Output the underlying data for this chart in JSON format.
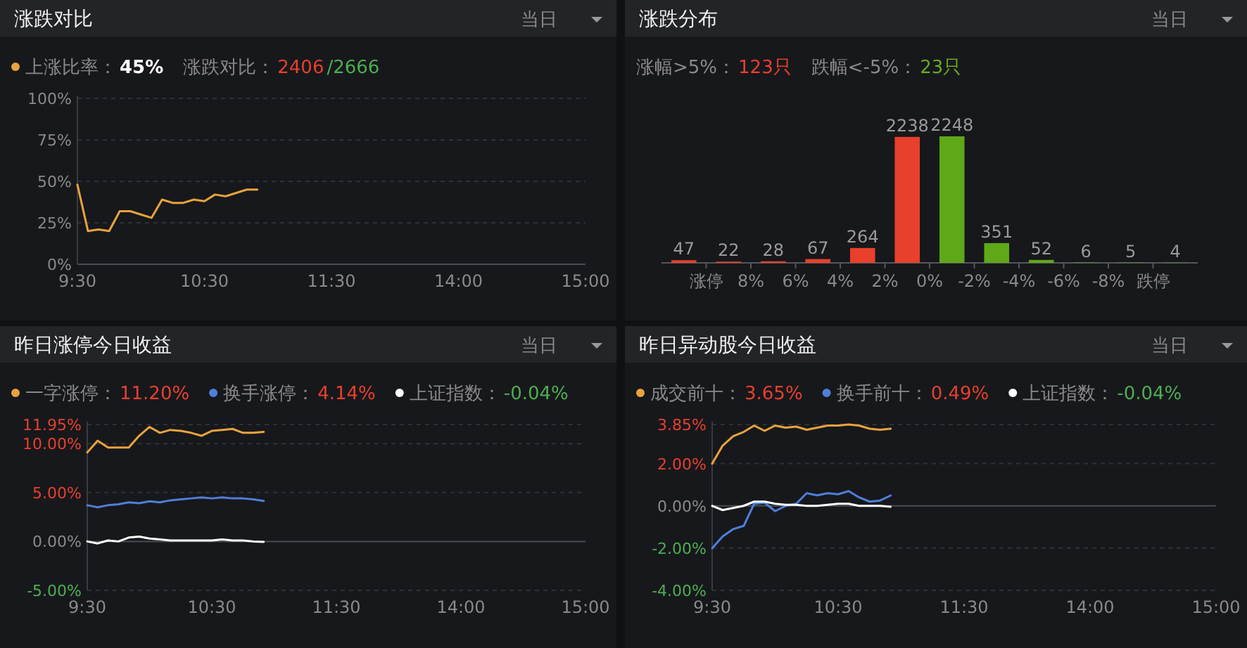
{
  "chart_data": [
    {
      "type": "line",
      "title": "涨跌对比",
      "annotations": [
        "当日",
        "45%",
        "涨跌对比：",
        "2406",
        "/2666"
      ],
      "legend": "top left",
      "grid": "y",
      "categories": [
        "9:30",
        null,
        null,
        null,
        null,
        null,
        null,
        null,
        null,
        null,
        null,
        null,
        "10:30",
        null,
        null,
        null,
        null,
        null,
        null,
        null,
        null,
        null,
        null,
        null,
        "11:30",
        null,
        null,
        null,
        null,
        null,
        null,
        null,
        null,
        null,
        null,
        null,
        "14:00",
        null,
        null,
        null,
        null,
        null,
        null,
        null,
        null,
        null,
        null,
        null,
        "15:00"
      ],
      "ylim": [
        0,
        100
      ],
      "yticks": [
        {
          "value": 0,
          "label": "0%"
        },
        {
          "value": 25,
          "label": "25%"
        },
        {
          "value": 50,
          "label": "50%"
        },
        {
          "value": 75,
          "label": "75%"
        },
        {
          "value": 100,
          "label": "100%"
        }
      ],
      "series": [
        {
          "name": "上涨比率：",
          "color": "#e8a33d",
          "values": [
            48,
            20,
            21,
            20,
            32,
            32,
            30,
            28,
            39,
            37,
            37,
            39,
            38,
            42,
            41,
            43,
            45,
            45,
            null,
            null,
            null,
            null,
            null,
            null,
            null,
            null,
            null,
            null,
            null,
            null,
            null,
            null,
            null,
            null,
            null,
            null,
            null,
            null,
            null,
            null,
            null,
            null,
            null,
            null,
            null,
            null,
            null,
            null,
            null
          ]
        }
      ]
    },
    {
      "type": "bar",
      "title": "涨跌分布",
      "annotations": [
        "当日",
        "涨幅>5%：",
        "123只",
        "跌幅<-5%：",
        "23只"
      ],
      "tick_labels": "x",
      "data_labels": true,
      "x": [
        11,
        9,
        7,
        5,
        3,
        1,
        -1,
        -3,
        -5,
        -7,
        -9,
        -11
      ],
      "values": [
        47,
        22,
        28,
        67,
        264,
        2238,
        2248,
        351,
        52,
        6,
        5,
        4
      ],
      "colors": [
        "#e8402b",
        "#e8402b",
        "#e8402b",
        "#e8402b",
        "#e8402b",
        "#e8402b",
        "#5fa818",
        "#5fa818",
        "#5fa818",
        "#5fa818",
        "#5fa818",
        "#5fa818"
      ],
      "xlim": [
        12,
        -12
      ],
      "xticks": [
        {
          "value": 10,
          "label": "涨停"
        },
        {
          "value": 8,
          "label": "8%"
        },
        {
          "value": 6,
          "label": "6%"
        },
        {
          "value": 4,
          "label": "4%"
        },
        {
          "value": 2,
          "label": "2%"
        },
        {
          "value": 0,
          "label": "0%"
        },
        {
          "value": -2,
          "label": "-2%"
        },
        {
          "value": -4,
          "label": "-4%"
        },
        {
          "value": -6,
          "label": "-6%"
        },
        {
          "value": -8,
          "label": "-8%"
        },
        {
          "value": -10,
          "label": "跌停"
        }
      ]
    },
    {
      "type": "line",
      "title": "昨日涨停今日收益",
      "annotations": [
        "当日",
        "11.20%",
        "4.14%",
        "-0.04%"
      ],
      "legend": "top left",
      "grid": "y",
      "categories": [
        "9:30",
        null,
        null,
        null,
        null,
        null,
        null,
        null,
        null,
        null,
        null,
        null,
        "10:30",
        null,
        null,
        null,
        null,
        null,
        null,
        null,
        null,
        null,
        null,
        null,
        "11:30",
        null,
        null,
        null,
        null,
        null,
        null,
        null,
        null,
        null,
        null,
        null,
        "14:00",
        null,
        null,
        null,
        null,
        null,
        null,
        null,
        null,
        null,
        null,
        null,
        "15:00"
      ],
      "ylim": [
        -5,
        11.95
      ],
      "yticks": [
        {
          "value": -5,
          "label": "-5.00%"
        },
        {
          "value": 0,
          "label": "0.00%"
        },
        {
          "value": 5,
          "label": "5.00%"
        },
        {
          "value": 10,
          "label": "10.00%"
        },
        {
          "value": 11.95,
          "label": "11.95%"
        }
      ],
      "series": [
        {
          "name": "一字涨停：",
          "color": "#e8a33d",
          "values": [
            9.1,
            10.3,
            9.6,
            9.6,
            9.6,
            10.8,
            11.7,
            11.1,
            11.4,
            11.3,
            11.1,
            10.8,
            11.3,
            11.4,
            11.5,
            11.1,
            11.1,
            11.2,
            null,
            null,
            null,
            null,
            null,
            null,
            null,
            null,
            null,
            null,
            null,
            null,
            null,
            null,
            null,
            null,
            null,
            null,
            null,
            null,
            null,
            null,
            null,
            null,
            null,
            null,
            null,
            null,
            null,
            null,
            null
          ]
        },
        {
          "name": "换手涨停：",
          "color": "#4f7fd8",
          "values": [
            3.7,
            3.5,
            3.7,
            3.8,
            4.0,
            3.9,
            4.1,
            4.0,
            4.2,
            4.3,
            4.4,
            4.5,
            4.4,
            4.5,
            4.4,
            4.4,
            4.3,
            4.14,
            null,
            null,
            null,
            null,
            null,
            null,
            null,
            null,
            null,
            null,
            null,
            null,
            null,
            null,
            null,
            null,
            null,
            null,
            null,
            null,
            null,
            null,
            null,
            null,
            null,
            null,
            null,
            null,
            null,
            null,
            null
          ]
        },
        {
          "name": "上证指数：",
          "color": "#ffffff",
          "values": [
            0,
            -0.2,
            0.1,
            0,
            0.4,
            0.5,
            0.3,
            0.2,
            0.1,
            0.1,
            0.1,
            0.1,
            0.1,
            0.2,
            0.1,
            0.1,
            0,
            -0.04,
            null,
            null,
            null,
            null,
            null,
            null,
            null,
            null,
            null,
            null,
            null,
            null,
            null,
            null,
            null,
            null,
            null,
            null,
            null,
            null,
            null,
            null,
            null,
            null,
            null,
            null,
            null,
            null,
            null,
            null,
            null
          ]
        }
      ]
    },
    {
      "type": "line",
      "title": "昨日异动股今日收益",
      "annotations": [
        "当日",
        "3.65%",
        "0.49%",
        "-0.04%"
      ],
      "legend": "top left",
      "grid": "y",
      "categories": [
        "9:30",
        null,
        null,
        null,
        null,
        null,
        null,
        null,
        null,
        null,
        null,
        null,
        "10:30",
        null,
        null,
        null,
        null,
        null,
        null,
        null,
        null,
        null,
        null,
        null,
        "11:30",
        null,
        null,
        null,
        null,
        null,
        null,
        null,
        null,
        null,
        null,
        null,
        "14:00",
        null,
        null,
        null,
        null,
        null,
        null,
        null,
        null,
        null,
        null,
        null,
        "15:00"
      ],
      "ylim": [
        -4,
        3.85
      ],
      "yticks": [
        {
          "value": -4,
          "label": "-4.00%"
        },
        {
          "value": -2,
          "label": "-2.00%"
        },
        {
          "value": 0,
          "label": "0.00%"
        },
        {
          "value": 2,
          "label": "2.00%"
        },
        {
          "value": 3.85,
          "label": "3.85%"
        }
      ],
      "series": [
        {
          "name": "成交前十：",
          "color": "#e8a33d",
          "values": [
            2.0,
            2.85,
            3.3,
            3.5,
            3.8,
            3.55,
            3.8,
            3.7,
            3.75,
            3.6,
            3.7,
            3.8,
            3.8,
            3.85,
            3.8,
            3.65,
            3.6,
            3.65,
            null,
            null,
            null,
            null,
            null,
            null,
            null,
            null,
            null,
            null,
            null,
            null,
            null,
            null,
            null,
            null,
            null,
            null,
            null,
            null,
            null,
            null,
            null,
            null,
            null,
            null,
            null,
            null,
            null,
            null,
            null
          ]
        },
        {
          "name": "换手前十：",
          "color": "#4f7fd8",
          "values": [
            -2.0,
            -1.45,
            -1.1,
            -0.95,
            0.1,
            0.15,
            -0.25,
            0,
            0.1,
            0.6,
            0.5,
            0.6,
            0.55,
            0.7,
            0.4,
            0.2,
            0.25,
            0.49,
            null,
            null,
            null,
            null,
            null,
            null,
            null,
            null,
            null,
            null,
            null,
            null,
            null,
            null,
            null,
            null,
            null,
            null,
            null,
            null,
            null,
            null,
            null,
            null,
            null,
            null,
            null,
            null,
            null,
            null,
            null
          ]
        },
        {
          "name": "上证指数：",
          "color": "#ffffff",
          "values": [
            0,
            -0.2,
            -0.1,
            0,
            0.2,
            0.2,
            0.1,
            0.05,
            0.05,
            0,
            0,
            0.05,
            0.1,
            0.1,
            0,
            0,
            0,
            -0.04,
            null,
            null,
            null,
            null,
            null,
            null,
            null,
            null,
            null,
            null,
            null,
            null,
            null,
            null,
            null,
            null,
            null,
            null,
            null,
            null,
            null,
            null,
            null,
            null,
            null,
            null,
            null,
            null,
            null,
            null,
            null
          ]
        }
      ]
    }
  ]
}
